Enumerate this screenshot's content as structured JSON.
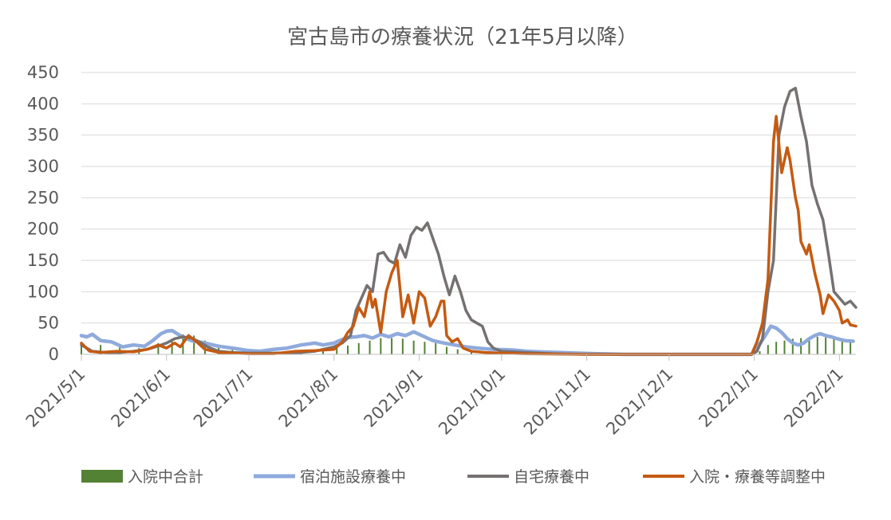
{
  "chart_data": {
    "type": "line",
    "title": "宮古島市の療養状況（21年5月以降）",
    "xlabel": "",
    "ylabel": "",
    "ylim": [
      0,
      450
    ],
    "yticks": [
      "0",
      "50",
      "100",
      "150",
      "200",
      "250",
      "300",
      "350",
      "400",
      "450"
    ],
    "xlim": [
      "2021-05-01",
      "2022-02-07"
    ],
    "xticks": [
      {
        "date": "2021-05-01",
        "label": "2021/5/1"
      },
      {
        "date": "2021-06-01",
        "label": "2021/6/1"
      },
      {
        "date": "2021-07-01",
        "label": "2021/7/1"
      },
      {
        "date": "2021-08-01",
        "label": "2021/8/1"
      },
      {
        "date": "2021-09-01",
        "label": "2021/9/1"
      },
      {
        "date": "2021-10-01",
        "label": "2021/10/1"
      },
      {
        "date": "2021-11-01",
        "label": "2021/11/1"
      },
      {
        "date": "2021-12-01",
        "label": "2021/12/1"
      },
      {
        "date": "2022-01-01",
        "label": "2022/1/1"
      },
      {
        "date": "2022-02-01",
        "label": "2022/2/1"
      }
    ],
    "grid": true,
    "legend_position": "bottom",
    "series": [
      {
        "name": "入院中合計",
        "kind": "bar",
        "color": "#548235",
        "points": [
          [
            "2021-05-01",
            18
          ],
          [
            "2021-05-08",
            15
          ],
          [
            "2021-05-15",
            12
          ],
          [
            "2021-05-22",
            10
          ],
          [
            "2021-05-29",
            18
          ],
          [
            "2021-06-03",
            25
          ],
          [
            "2021-06-07",
            32
          ],
          [
            "2021-06-11",
            30
          ],
          [
            "2021-06-15",
            22
          ],
          [
            "2021-06-20",
            15
          ],
          [
            "2021-06-25",
            10
          ],
          [
            "2021-07-01",
            5
          ],
          [
            "2021-07-10",
            3
          ],
          [
            "2021-07-20",
            3
          ],
          [
            "2021-07-28",
            5
          ],
          [
            "2021-08-02",
            10
          ],
          [
            "2021-08-06",
            14
          ],
          [
            "2021-08-10",
            18
          ],
          [
            "2021-08-14",
            22
          ],
          [
            "2021-08-18",
            26
          ],
          [
            "2021-08-22",
            26
          ],
          [
            "2021-08-26",
            25
          ],
          [
            "2021-08-30",
            22
          ],
          [
            "2021-09-03",
            20
          ],
          [
            "2021-09-07",
            18
          ],
          [
            "2021-09-11",
            12
          ],
          [
            "2021-09-15",
            8
          ],
          [
            "2021-09-20",
            4
          ],
          [
            "2021-09-28",
            2
          ],
          [
            "2021-10-10",
            1
          ],
          [
            "2021-10-20",
            0
          ],
          [
            "2021-11-01",
            0
          ],
          [
            "2021-12-01",
            0
          ],
          [
            "2021-12-31",
            0
          ],
          [
            "2022-01-03",
            5
          ],
          [
            "2022-01-06",
            15
          ],
          [
            "2022-01-09",
            20
          ],
          [
            "2022-01-12",
            22
          ],
          [
            "2022-01-15",
            25
          ],
          [
            "2022-01-18",
            26
          ],
          [
            "2022-01-21",
            27
          ],
          [
            "2022-01-24",
            28
          ],
          [
            "2022-01-27",
            27
          ],
          [
            "2022-01-30",
            25
          ],
          [
            "2022-02-02",
            23
          ],
          [
            "2022-02-05",
            22
          ]
        ]
      },
      {
        "name": "宿泊施設療養中",
        "kind": "line",
        "color": "#8faadc",
        "points": [
          [
            "2021-05-01",
            30
          ],
          [
            "2021-05-03",
            28
          ],
          [
            "2021-05-05",
            32
          ],
          [
            "2021-05-08",
            22
          ],
          [
            "2021-05-12",
            20
          ],
          [
            "2021-05-16",
            12
          ],
          [
            "2021-05-20",
            15
          ],
          [
            "2021-05-24",
            13
          ],
          [
            "2021-05-27",
            22
          ],
          [
            "2021-05-30",
            33
          ],
          [
            "2021-06-01",
            37
          ],
          [
            "2021-06-03",
            38
          ],
          [
            "2021-06-06",
            30
          ],
          [
            "2021-06-10",
            22
          ],
          [
            "2021-06-15",
            18
          ],
          [
            "2021-06-20",
            13
          ],
          [
            "2021-06-25",
            10
          ],
          [
            "2021-07-01",
            6
          ],
          [
            "2021-07-05",
            5
          ],
          [
            "2021-07-10",
            8
          ],
          [
            "2021-07-15",
            10
          ],
          [
            "2021-07-20",
            15
          ],
          [
            "2021-07-25",
            18
          ],
          [
            "2021-07-28",
            15
          ],
          [
            "2021-08-01",
            18
          ],
          [
            "2021-08-03",
            22
          ],
          [
            "2021-08-06",
            27
          ],
          [
            "2021-08-09",
            28
          ],
          [
            "2021-08-12",
            30
          ],
          [
            "2021-08-15",
            26
          ],
          [
            "2021-08-18",
            32
          ],
          [
            "2021-08-21",
            28
          ],
          [
            "2021-08-24",
            33
          ],
          [
            "2021-08-27",
            30
          ],
          [
            "2021-08-30",
            36
          ],
          [
            "2021-09-02",
            30
          ],
          [
            "2021-09-06",
            22
          ],
          [
            "2021-09-10",
            18
          ],
          [
            "2021-09-14",
            15
          ],
          [
            "2021-09-18",
            12
          ],
          [
            "2021-09-22",
            10
          ],
          [
            "2021-09-28",
            8
          ],
          [
            "2021-10-05",
            7
          ],
          [
            "2021-10-10",
            5
          ],
          [
            "2021-10-15",
            4
          ],
          [
            "2021-10-22",
            3
          ],
          [
            "2021-10-28",
            2
          ],
          [
            "2021-11-05",
            1
          ],
          [
            "2021-11-15",
            0
          ],
          [
            "2021-12-01",
            0
          ],
          [
            "2021-12-31",
            0
          ],
          [
            "2022-01-02",
            10
          ],
          [
            "2022-01-05",
            30
          ],
          [
            "2022-01-07",
            45
          ],
          [
            "2022-01-09",
            42
          ],
          [
            "2022-01-11",
            35
          ],
          [
            "2022-01-13",
            25
          ],
          [
            "2022-01-15",
            18
          ],
          [
            "2022-01-17",
            15
          ],
          [
            "2022-01-19",
            18
          ],
          [
            "2022-01-21",
            25
          ],
          [
            "2022-01-23",
            30
          ],
          [
            "2022-01-25",
            33
          ],
          [
            "2022-01-27",
            30
          ],
          [
            "2022-01-29",
            28
          ],
          [
            "2022-02-01",
            24
          ],
          [
            "2022-02-03",
            22
          ],
          [
            "2022-02-06",
            21
          ]
        ]
      },
      {
        "name": "自宅療養中",
        "kind": "line",
        "color": "#767171",
        "points": [
          [
            "2021-05-01",
            15
          ],
          [
            "2021-05-05",
            5
          ],
          [
            "2021-05-10",
            3
          ],
          [
            "2021-05-15",
            3
          ],
          [
            "2021-05-20",
            5
          ],
          [
            "2021-05-25",
            8
          ],
          [
            "2021-05-28",
            12
          ],
          [
            "2021-06-01",
            18
          ],
          [
            "2021-06-04",
            25
          ],
          [
            "2021-06-07",
            28
          ],
          [
            "2021-06-10",
            26
          ],
          [
            "2021-06-13",
            20
          ],
          [
            "2021-06-16",
            12
          ],
          [
            "2021-06-20",
            5
          ],
          [
            "2021-06-25",
            3
          ],
          [
            "2021-07-01",
            2
          ],
          [
            "2021-07-10",
            2
          ],
          [
            "2021-07-20",
            3
          ],
          [
            "2021-07-25",
            5
          ],
          [
            "2021-08-01",
            12
          ],
          [
            "2021-08-04",
            18
          ],
          [
            "2021-08-07",
            30
          ],
          [
            "2021-08-09",
            70
          ],
          [
            "2021-08-11",
            90
          ],
          [
            "2021-08-13",
            110
          ],
          [
            "2021-08-15",
            100
          ],
          [
            "2021-08-17",
            160
          ],
          [
            "2021-08-19",
            163
          ],
          [
            "2021-08-21",
            150
          ],
          [
            "2021-08-23",
            145
          ],
          [
            "2021-08-25",
            175
          ],
          [
            "2021-08-27",
            155
          ],
          [
            "2021-08-29",
            190
          ],
          [
            "2021-08-31",
            203
          ],
          [
            "2021-09-02",
            198
          ],
          [
            "2021-09-04",
            210
          ],
          [
            "2021-09-06",
            185
          ],
          [
            "2021-09-08",
            160
          ],
          [
            "2021-09-10",
            125
          ],
          [
            "2021-09-12",
            95
          ],
          [
            "2021-09-14",
            125
          ],
          [
            "2021-09-16",
            100
          ],
          [
            "2021-09-18",
            70
          ],
          [
            "2021-09-20",
            55
          ],
          [
            "2021-09-22",
            50
          ],
          [
            "2021-09-24",
            45
          ],
          [
            "2021-09-26",
            20
          ],
          [
            "2021-09-28",
            10
          ],
          [
            "2021-10-01",
            5
          ],
          [
            "2021-10-10",
            3
          ],
          [
            "2021-10-20",
            1
          ],
          [
            "2021-11-01",
            0
          ],
          [
            "2021-12-01",
            0
          ],
          [
            "2021-12-31",
            0
          ],
          [
            "2022-01-02",
            5
          ],
          [
            "2022-01-04",
            25
          ],
          [
            "2022-01-06",
            100
          ],
          [
            "2022-01-08",
            150
          ],
          [
            "2022-01-10",
            350
          ],
          [
            "2022-01-12",
            395
          ],
          [
            "2022-01-14",
            420
          ],
          [
            "2022-01-16",
            425
          ],
          [
            "2022-01-18",
            380
          ],
          [
            "2022-01-20",
            340
          ],
          [
            "2022-01-22",
            270
          ],
          [
            "2022-01-24",
            240
          ],
          [
            "2022-01-26",
            215
          ],
          [
            "2022-01-28",
            160
          ],
          [
            "2022-01-30",
            100
          ],
          [
            "2022-02-01",
            90
          ],
          [
            "2022-02-03",
            80
          ],
          [
            "2022-02-05",
            85
          ],
          [
            "2022-02-07",
            75
          ]
        ]
      },
      {
        "name": "入院・療養等調整中",
        "kind": "line",
        "color": "#c55a11",
        "points": [
          [
            "2021-05-01",
            18
          ],
          [
            "2021-05-04",
            5
          ],
          [
            "2021-05-08",
            3
          ],
          [
            "2021-05-14",
            5
          ],
          [
            "2021-05-20",
            4
          ],
          [
            "2021-05-25",
            8
          ],
          [
            "2021-05-29",
            15
          ],
          [
            "2021-06-01",
            10
          ],
          [
            "2021-06-04",
            18
          ],
          [
            "2021-06-06",
            12
          ],
          [
            "2021-06-09",
            30
          ],
          [
            "2021-06-12",
            20
          ],
          [
            "2021-06-15",
            8
          ],
          [
            "2021-06-20",
            3
          ],
          [
            "2021-06-25",
            2
          ],
          [
            "2021-07-01",
            1
          ],
          [
            "2021-07-10",
            1
          ],
          [
            "2021-07-18",
            5
          ],
          [
            "2021-07-25",
            6
          ],
          [
            "2021-08-01",
            8
          ],
          [
            "2021-08-04",
            20
          ],
          [
            "2021-08-06",
            35
          ],
          [
            "2021-08-08",
            45
          ],
          [
            "2021-08-10",
            75
          ],
          [
            "2021-08-12",
            60
          ],
          [
            "2021-08-14",
            100
          ],
          [
            "2021-08-15",
            75
          ],
          [
            "2021-08-16",
            88
          ],
          [
            "2021-08-18",
            35
          ],
          [
            "2021-08-20",
            100
          ],
          [
            "2021-08-22",
            130
          ],
          [
            "2021-08-24",
            150
          ],
          [
            "2021-08-26",
            60
          ],
          [
            "2021-08-28",
            95
          ],
          [
            "2021-08-30",
            50
          ],
          [
            "2021-09-01",
            100
          ],
          [
            "2021-09-03",
            90
          ],
          [
            "2021-09-05",
            45
          ],
          [
            "2021-09-07",
            60
          ],
          [
            "2021-09-09",
            85
          ],
          [
            "2021-09-10",
            85
          ],
          [
            "2021-09-11",
            30
          ],
          [
            "2021-09-13",
            20
          ],
          [
            "2021-09-15",
            25
          ],
          [
            "2021-09-17",
            10
          ],
          [
            "2021-09-20",
            5
          ],
          [
            "2021-09-25",
            3
          ],
          [
            "2021-10-01",
            2
          ],
          [
            "2021-10-10",
            1
          ],
          [
            "2021-11-01",
            0
          ],
          [
            "2021-12-01",
            0
          ],
          [
            "2021-12-31",
            0
          ],
          [
            "2022-01-02",
            20
          ],
          [
            "2022-01-04",
            50
          ],
          [
            "2022-01-06",
            120
          ],
          [
            "2022-01-08",
            340
          ],
          [
            "2022-01-09",
            380
          ],
          [
            "2022-01-11",
            290
          ],
          [
            "2022-01-13",
            330
          ],
          [
            "2022-01-14",
            310
          ],
          [
            "2022-01-16",
            250
          ],
          [
            "2022-01-17",
            230
          ],
          [
            "2022-01-18",
            180
          ],
          [
            "2022-01-20",
            160
          ],
          [
            "2022-01-21",
            175
          ],
          [
            "2022-01-23",
            130
          ],
          [
            "2022-01-25",
            95
          ],
          [
            "2022-01-26",
            65
          ],
          [
            "2022-01-28",
            95
          ],
          [
            "2022-01-30",
            85
          ],
          [
            "2022-02-01",
            70
          ],
          [
            "2022-02-02",
            50
          ],
          [
            "2022-02-04",
            55
          ],
          [
            "2022-02-05",
            47
          ],
          [
            "2022-02-07",
            45
          ]
        ]
      }
    ]
  }
}
